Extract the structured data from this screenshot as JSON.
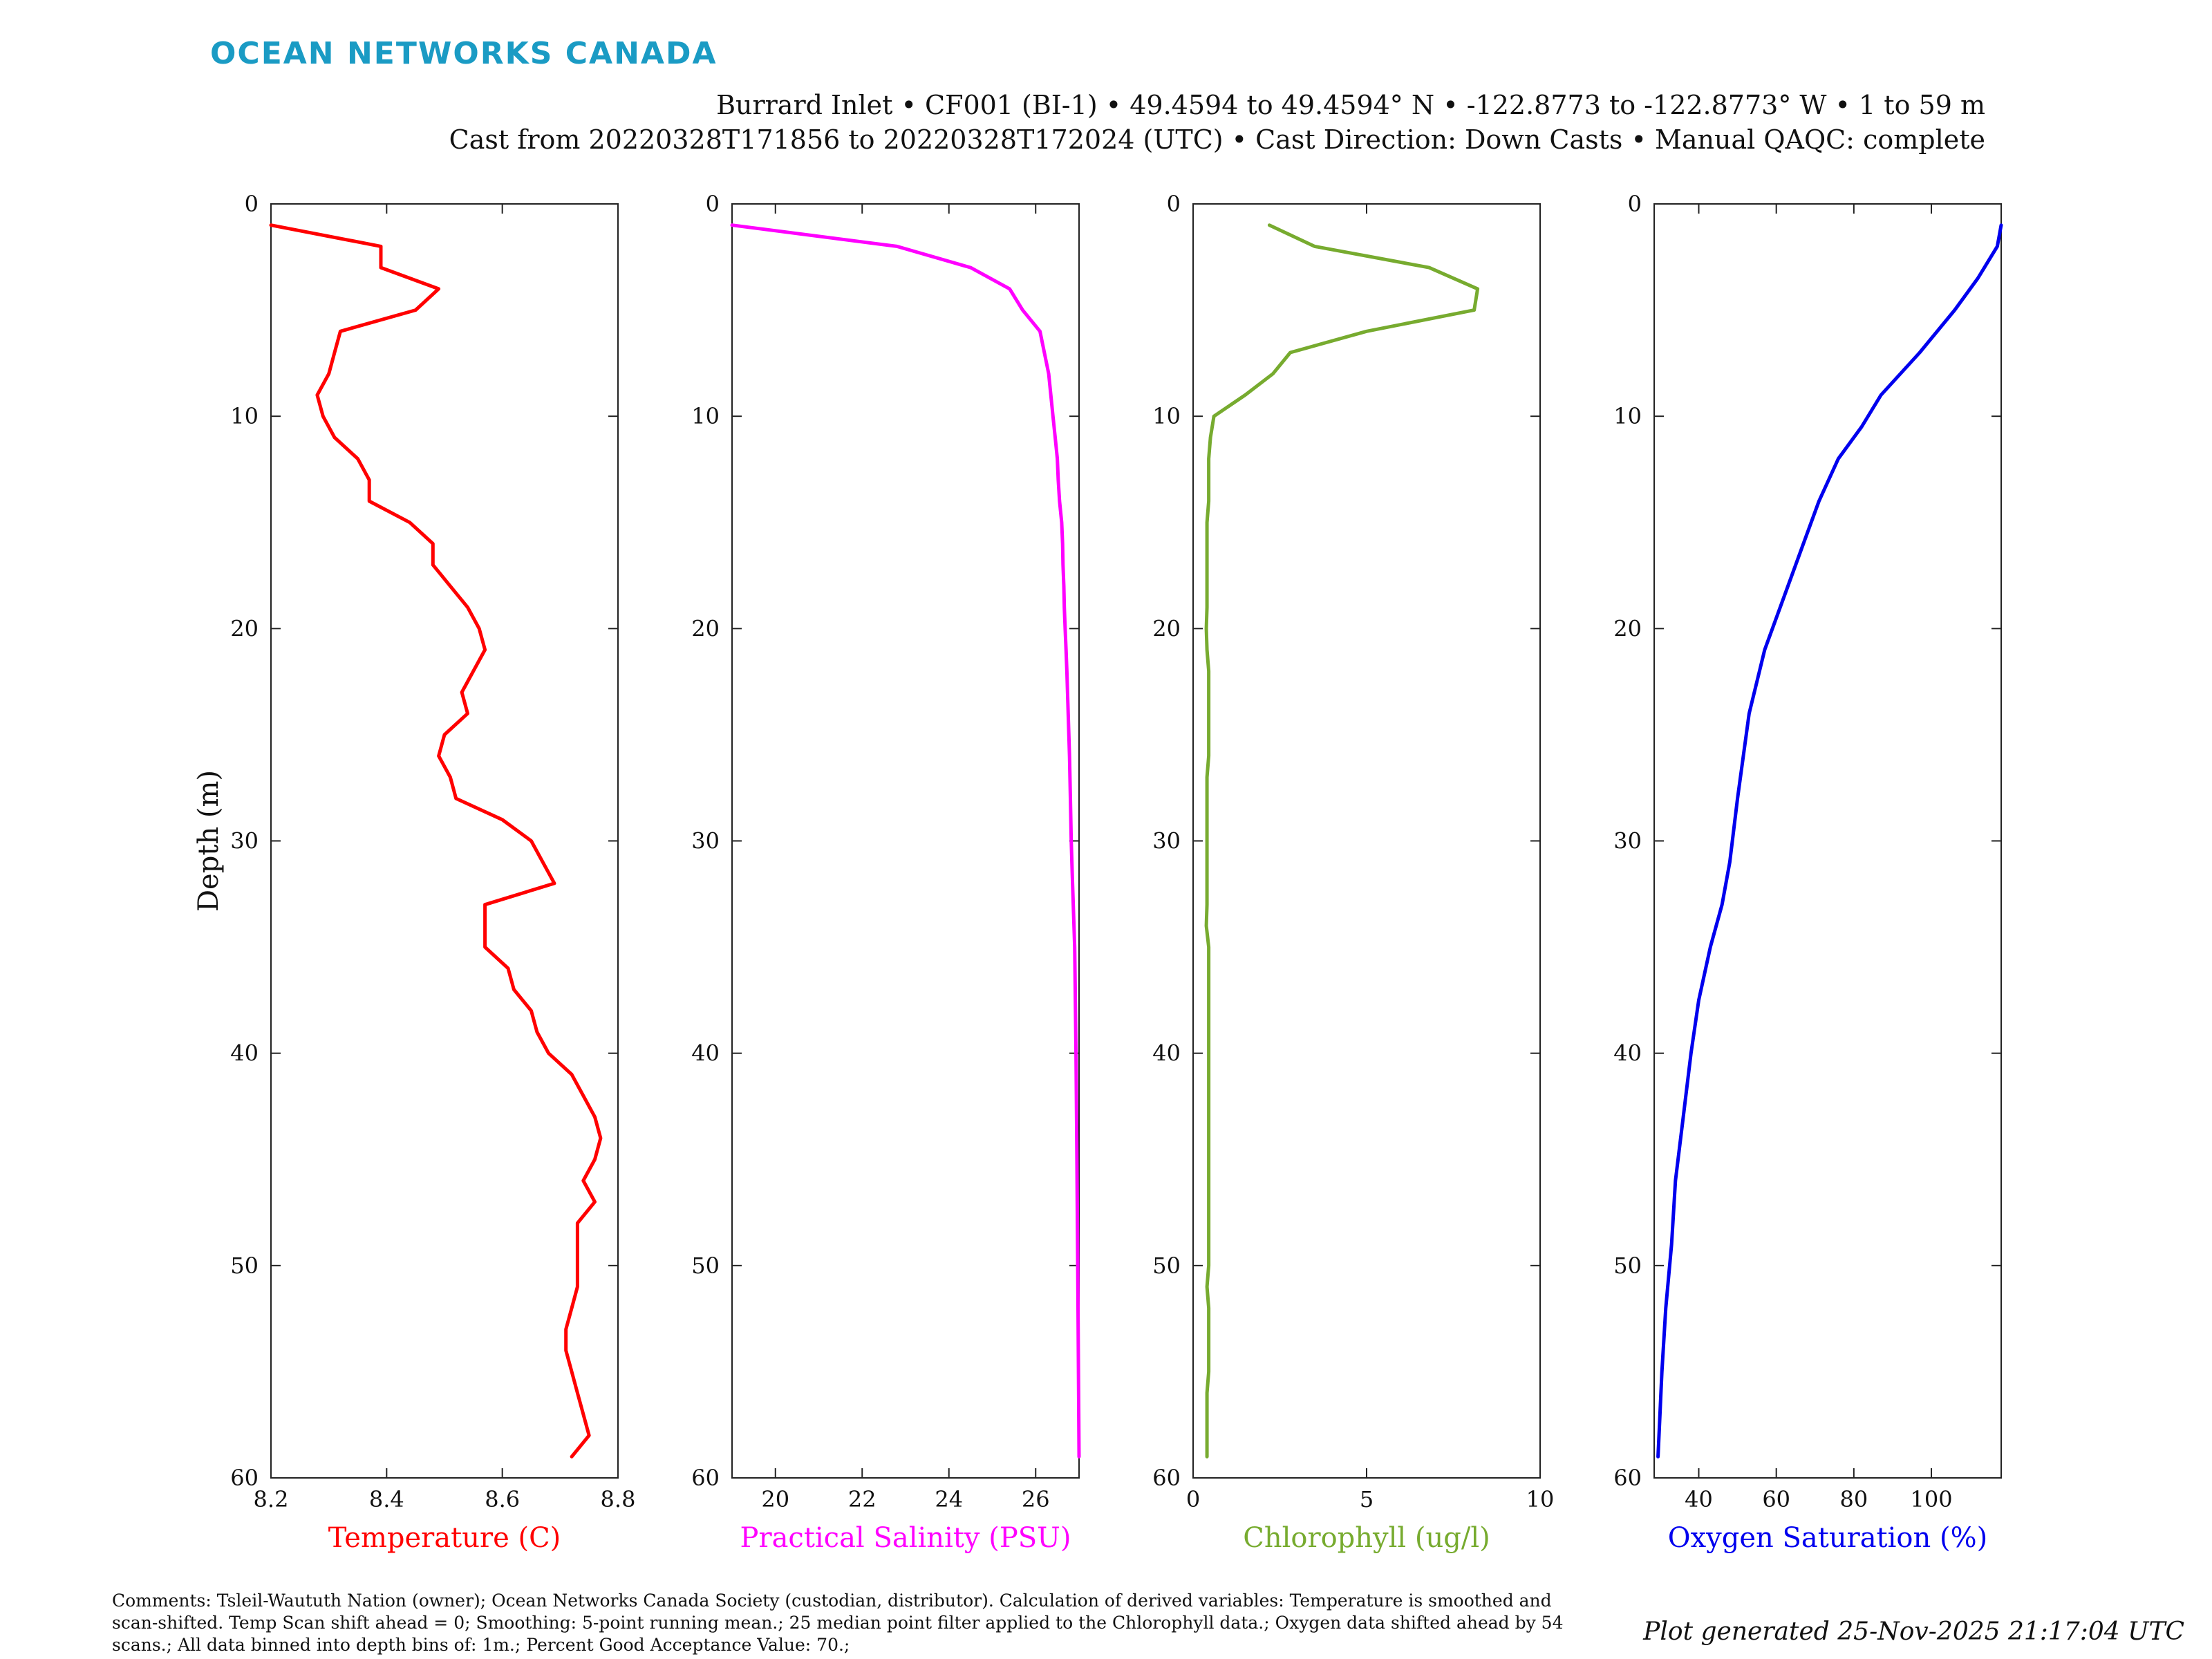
{
  "brand": "OCEAN NETWORKS CANADA",
  "header": {
    "line1": "Burrard Inlet • CF001 (BI-1) • 49.4594 to 49.4594° N • -122.8773 to -122.8773° W • 1 to 59 m",
    "line2": "Cast from 20220328T171856 to 20220328T172024 (UTC) • Cast Direction: Down Casts • Manual QAQC: complete"
  },
  "comments": "Comments: Tsleil-Waututh Nation (owner); Ocean Networks Canada Society (custodian, distributor). Calculation of derived variables: Temperature is smoothed and scan-shifted. Temp Scan shift ahead = 0; Smoothing: 5-point running mean.; 25 median point filter applied to the Chlorophyll data.; Oxygen data shifted ahead by 54 scans.; All data binned into depth bins of: 1m.; Percent Good Acceptance Value: 70.;",
  "generated": "Plot generated 25-Nov-2025 21:17:04 UTC",
  "chart_data": [
    {
      "type": "line",
      "xlabel": "Temperature (C)",
      "ylabel": "Depth (m)",
      "color": "#ff0000",
      "xlim": [
        8.2,
        8.8
      ],
      "ylim": [
        0,
        60
      ],
      "y_reversed": true,
      "xticks": [
        8.2,
        8.4,
        8.6,
        8.8
      ],
      "xtick_labels": [
        "8.2",
        "8.4",
        "8.6",
        "8.8"
      ],
      "yticks": [
        0,
        10,
        20,
        30,
        40,
        50,
        60
      ],
      "ytick_labels": [
        "0",
        "10",
        "20",
        "30",
        "40",
        "50",
        "60"
      ],
      "x": [
        8.2,
        8.39,
        8.39,
        8.49,
        8.45,
        8.32,
        8.31,
        8.3,
        8.28,
        8.29,
        8.31,
        8.35,
        8.37,
        8.37,
        8.44,
        8.48,
        8.48,
        8.51,
        8.54,
        8.56,
        8.57,
        8.55,
        8.53,
        8.54,
        8.5,
        8.49,
        8.51,
        8.52,
        8.6,
        8.65,
        8.67,
        8.69,
        8.57,
        8.57,
        8.57,
        8.61,
        8.62,
        8.65,
        8.66,
        8.68,
        8.72,
        8.74,
        8.76,
        8.77,
        8.76,
        8.74,
        8.76,
        8.73,
        8.73,
        8.73,
        8.73,
        8.72,
        8.71,
        8.71,
        8.72,
        8.73,
        8.74,
        8.75,
        8.72
      ],
      "y": [
        1,
        2,
        3,
        4,
        5,
        6,
        7,
        8,
        9,
        10,
        11,
        12,
        13,
        14,
        15,
        16,
        17,
        18,
        19,
        20,
        21,
        22,
        23,
        24,
        25,
        26,
        27,
        28,
        29,
        30,
        31,
        32,
        33,
        34,
        35,
        36,
        37,
        38,
        39,
        40,
        41,
        42,
        43,
        44,
        45,
        46,
        47,
        48,
        49,
        50,
        51,
        52,
        53,
        54,
        55,
        56,
        57,
        58,
        59
      ]
    },
    {
      "type": "line",
      "xlabel": "Practical Salinity (PSU)",
      "color": "#ff00ff",
      "xlim": [
        19,
        27
      ],
      "ylim": [
        0,
        60
      ],
      "y_reversed": true,
      "xticks": [
        20,
        22,
        24,
        26
      ],
      "xtick_labels": [
        "20",
        "22",
        "24",
        "26"
      ],
      "yticks": [
        0,
        10,
        20,
        30,
        40,
        50,
        60
      ],
      "ytick_labels": [
        "0",
        "10",
        "20",
        "30",
        "40",
        "50",
        "60"
      ],
      "x": [
        19.0,
        22.8,
        24.5,
        25.4,
        25.7,
        26.1,
        26.2,
        26.3,
        26.35,
        26.4,
        26.45,
        26.5,
        26.52,
        26.55,
        26.6,
        26.62,
        26.63,
        26.65,
        26.66,
        26.68,
        26.7,
        26.72,
        26.75,
        26.78,
        26.8,
        26.82,
        26.85,
        26.9,
        26.93,
        26.95,
        26.97,
        27.0
      ],
      "y": [
        1,
        2,
        3,
        4,
        5,
        6,
        7,
        8,
        9,
        10,
        11,
        12,
        13,
        14,
        15,
        16,
        17,
        18,
        19,
        20,
        21,
        22,
        24,
        26,
        28,
        30,
        32,
        35,
        40,
        45,
        50,
        59
      ]
    },
    {
      "type": "line",
      "xlabel": "Chlorophyll (ug/l)",
      "color": "#77ab2f",
      "xlim": [
        0,
        10
      ],
      "ylim": [
        0,
        60
      ],
      "y_reversed": true,
      "xticks": [
        0,
        5,
        10
      ],
      "xtick_labels": [
        "0",
        "5",
        "10"
      ],
      "yticks": [
        0,
        10,
        20,
        30,
        40,
        50,
        60
      ],
      "ytick_labels": [
        "0",
        "10",
        "20",
        "30",
        "40",
        "50",
        "60"
      ],
      "x": [
        2.2,
        3.5,
        6.8,
        8.2,
        8.1,
        5.0,
        2.8,
        2.3,
        1.5,
        0.6,
        0.5,
        0.45,
        0.45,
        0.45,
        0.4,
        0.4,
        0.4,
        0.4,
        0.4,
        0.38,
        0.4,
        0.45,
        0.45,
        0.45,
        0.45,
        0.45,
        0.4,
        0.4,
        0.4,
        0.4,
        0.4,
        0.4,
        0.4,
        0.38,
        0.45,
        0.45,
        0.45,
        0.45,
        0.45,
        0.45,
        0.45,
        0.45,
        0.45,
        0.45,
        0.45,
        0.45,
        0.45,
        0.45,
        0.45,
        0.45,
        0.4,
        0.45,
        0.45,
        0.45,
        0.45,
        0.4,
        0.4,
        0.4,
        0.4
      ],
      "y": [
        1,
        2,
        3,
        4,
        5,
        6,
        7,
        8,
        9,
        10,
        11,
        12,
        13,
        14,
        15,
        16,
        17,
        18,
        19,
        20,
        21,
        22,
        23,
        24,
        25,
        26,
        27,
        28,
        29,
        30,
        31,
        32,
        33,
        34,
        35,
        36,
        37,
        38,
        39,
        40,
        41,
        42,
        43,
        44,
        45,
        46,
        47,
        48,
        49,
        50,
        51,
        52,
        53,
        54,
        55,
        56,
        57,
        58,
        59
      ]
    },
    {
      "type": "line",
      "xlabel": "Oxygen Saturation (%)",
      "color": "#0000ee",
      "xlim": [
        28.5,
        118
      ],
      "ylim": [
        0,
        60
      ],
      "y_reversed": true,
      "xticks": [
        40,
        60,
        80,
        100
      ],
      "xtick_labels": [
        "40",
        "60",
        "80",
        "100"
      ],
      "yticks": [
        0,
        10,
        20,
        30,
        40,
        50,
        60
      ],
      "ytick_labels": [
        "0",
        "10",
        "20",
        "30",
        "40",
        "50",
        "60"
      ],
      "x": [
        118,
        117,
        112,
        106,
        97,
        87,
        82,
        76,
        71,
        67,
        61,
        57,
        53,
        50,
        48,
        46,
        43,
        40,
        38,
        36,
        34,
        33,
        31.5,
        30.5,
        29.5
      ],
      "y": [
        1,
        2,
        3.5,
        5,
        7,
        9,
        10.5,
        12,
        14,
        16,
        19,
        21,
        24,
        28,
        31,
        33,
        35,
        37.5,
        40,
        43,
        46,
        49,
        52,
        55,
        59
      ]
    }
  ]
}
